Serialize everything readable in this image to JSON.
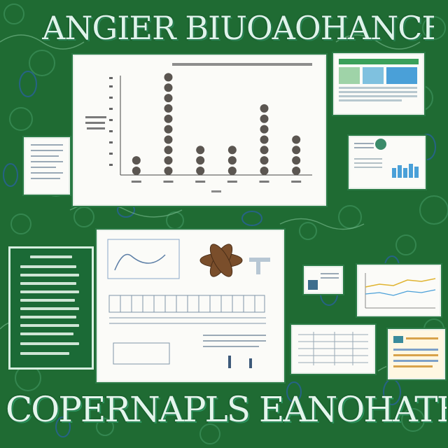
{
  "poster": {
    "title": "ANGIER BIUOAOHANCE SHY",
    "footer": "COPERNAPLS EANOHATHAs"
  },
  "chart_data": {
    "type": "bar",
    "title": "",
    "xlabel": "",
    "ylabel": "",
    "categories": [
      "",
      "",
      "",
      "",
      "",
      ""
    ],
    "values": [
      2,
      10,
      3,
      3,
      7,
      4
    ],
    "ylim": [
      0,
      11
    ],
    "grid": false,
    "marker_style": "stacked-dots"
  },
  "colors": {
    "background": "#1f6b33",
    "dot": "#5b5651",
    "panel": "#fbfbf8",
    "accent_blue": "#4aa0d8",
    "accent_green": "#3aa05a"
  }
}
